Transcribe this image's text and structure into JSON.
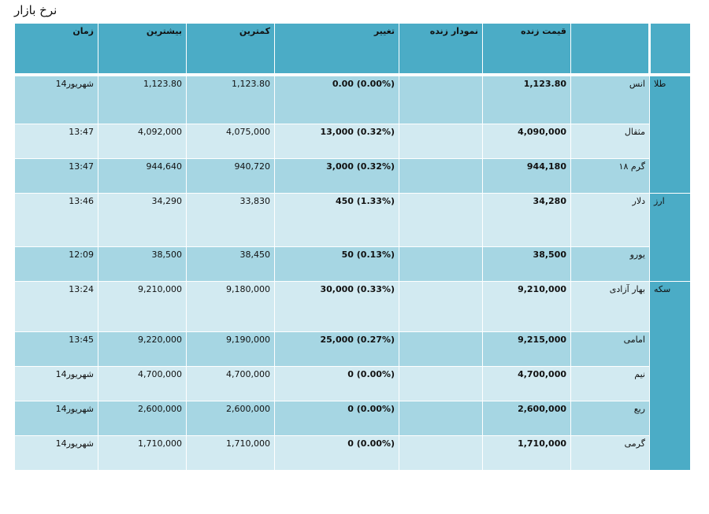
{
  "title": "نرخ بازار",
  "headers": {
    "time": "زمان",
    "high": "بیشترین",
    "low": "کمترین",
    "change": "تغییر",
    "chart": "نمودار زنده",
    "live": "قیمت زنده",
    "item": "",
    "group": ""
  },
  "groups": {
    "gold": "طلا",
    "currency": "ارز",
    "coin": "سکه"
  },
  "rows": [
    {
      "item": "انس",
      "live": "1,123.80",
      "change": "0.00 (0.00%)",
      "low": "1,123.80",
      "high": "1,123.80",
      "time": "14شهریور"
    },
    {
      "item": "مثقال",
      "live": "4,090,000",
      "change": "13,000 (0.32%)",
      "low": "4,075,000",
      "high": "4,092,000",
      "time": "13:47"
    },
    {
      "item": "گرم ۱۸",
      "live": "944,180",
      "change": "3,000 (0.32%)",
      "low": "940,720",
      "high": "944,640",
      "time": "13:47"
    },
    {
      "item": "دلار",
      "live": "34,280",
      "change": "450 (1.33%)",
      "low": "33,830",
      "high": "34,290",
      "time": "13:46"
    },
    {
      "item": "یورو",
      "live": "38,500",
      "change": "50 (0.13%)",
      "low": "38,450",
      "high": "38,500",
      "time": "12:09"
    },
    {
      "item": "بهار آزادی",
      "live": "9,210,000",
      "change": "30,000 (0.33%)",
      "low": "9,180,000",
      "high": "9,210,000",
      "time": "13:24"
    },
    {
      "item": "امامی",
      "live": "9,215,000",
      "change": "25,000 (0.27%)",
      "low": "9,190,000",
      "high": "9,220,000",
      "time": "13:45"
    },
    {
      "item": "نیم",
      "live": "4,700,000",
      "change": "0 (0.00%)",
      "low": "4,700,000",
      "high": "4,700,000",
      "time": "14شهریور"
    },
    {
      "item": "ربع",
      "live": "2,600,000",
      "change": "0 (0.00%)",
      "low": "2,600,000",
      "high": "2,600,000",
      "time": "14شهریور"
    },
    {
      "item": "گرمی",
      "live": "1,710,000",
      "change": "0 (0.00%)",
      "low": "1,710,000",
      "high": "1,710,000",
      "time": "14شهریور"
    }
  ],
  "colors": {
    "header": "#4bacc6",
    "row_dark": "#a6d6e3",
    "row_light": "#d2eaf1"
  }
}
